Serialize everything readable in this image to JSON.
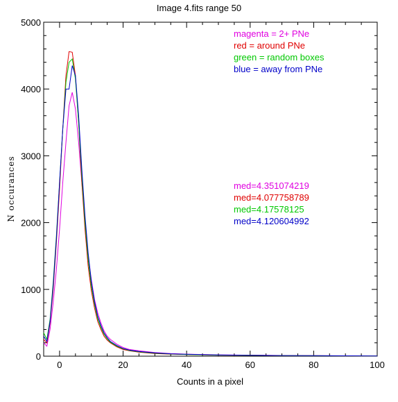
{
  "chart_data": {
    "type": "line",
    "title": "Image 4.fits    range 50",
    "xlabel": "Counts in a pixel",
    "ylabel": "N occurances",
    "xlim": [
      -5,
      100
    ],
    "ylim": [
      0,
      5000
    ],
    "xticks": [
      0,
      20,
      40,
      60,
      80,
      100
    ],
    "yticks": [
      0,
      1000,
      2000,
      3000,
      4000,
      5000
    ],
    "grid": false,
    "legend": [
      {
        "text": "magenta = 2+ PNe",
        "color": "#e000e0"
      },
      {
        "text": "red = around PNe",
        "color": "#e00000"
      },
      {
        "text": "green = random boxes",
        "color": "#00c800"
      },
      {
        "text": "blue = away from PNe",
        "color": "#0000c8"
      }
    ],
    "annotations": [
      {
        "text": "med=4.351074219",
        "color": "#e000e0"
      },
      {
        "text": "med=4.077758789",
        "color": "#e00000"
      },
      {
        "text": "med=4.17578125",
        "color": "#00c800"
      },
      {
        "text": "med=4.120604992",
        "color": "#0000c8"
      }
    ],
    "series": [
      {
        "color": "#e000e0",
        "x": [
          -5,
          -4,
          -3,
          -2,
          -1,
          0,
          1,
          2,
          3,
          4,
          5,
          6,
          7,
          8,
          9,
          10,
          11,
          12,
          13,
          14,
          15,
          16,
          18,
          20,
          22,
          25,
          30,
          35,
          40,
          50,
          60,
          70,
          80,
          90,
          100
        ],
        "y": [
          200,
          150,
          400,
          800,
          1300,
          1900,
          2600,
          3200,
          3750,
          3950,
          3700,
          3200,
          2600,
          2000,
          1500,
          1150,
          850,
          650,
          500,
          380,
          300,
          250,
          180,
          130,
          100,
          80,
          55,
          40,
          30,
          20,
          15,
          10,
          8,
          5,
          3
        ]
      },
      {
        "color": "#e00000",
        "x": [
          -5,
          -4,
          -3,
          -2,
          -1,
          0,
          1,
          2,
          3,
          4,
          5,
          6,
          7,
          8,
          9,
          10,
          11,
          12,
          13,
          14,
          15,
          16,
          18,
          20,
          22,
          25,
          30,
          35,
          40,
          50,
          60,
          70,
          80,
          90,
          100
        ],
        "y": [
          250,
          200,
          500,
          1000,
          1700,
          2500,
          3400,
          4200,
          4560,
          4550,
          4200,
          3500,
          2600,
          1900,
          1350,
          980,
          720,
          520,
          400,
          300,
          240,
          200,
          140,
          100,
          80,
          60,
          40,
          30,
          25,
          15,
          12,
          8,
          6,
          4,
          2
        ]
      },
      {
        "color": "#00c800",
        "x": [
          -5,
          -4,
          -3,
          -2,
          -1,
          0,
          1,
          2,
          3,
          4,
          5,
          6,
          7,
          8,
          9,
          10,
          11,
          12,
          13,
          14,
          15,
          16,
          18,
          20,
          22,
          25,
          30,
          35,
          40,
          50,
          60,
          70,
          80,
          90,
          100
        ],
        "y": [
          350,
          250,
          550,
          1100,
          1800,
          2600,
          3400,
          4100,
          4400,
          4450,
          4150,
          3500,
          2700,
          2000,
          1450,
          1050,
          780,
          560,
          430,
          330,
          260,
          210,
          150,
          110,
          85,
          65,
          45,
          32,
          25,
          16,
          12,
          8,
          6,
          4,
          2
        ]
      },
      {
        "color": "#0000c8",
        "x": [
          -5,
          -4,
          -3,
          -2,
          -1,
          0,
          1,
          2,
          3,
          4,
          5,
          6,
          7,
          8,
          9,
          10,
          11,
          12,
          13,
          14,
          15,
          16,
          18,
          20,
          22,
          25,
          30,
          35,
          40,
          50,
          60,
          70,
          80,
          90,
          100
        ],
        "y": [
          300,
          220,
          520,
          1050,
          1750,
          2600,
          3400,
          4000,
          4000,
          4350,
          4200,
          3600,
          2800,
          2100,
          1550,
          1120,
          820,
          600,
          460,
          350,
          280,
          220,
          160,
          115,
          90,
          70,
          50,
          35,
          28,
          18,
          13,
          9,
          7,
          5,
          3
        ]
      }
    ]
  }
}
